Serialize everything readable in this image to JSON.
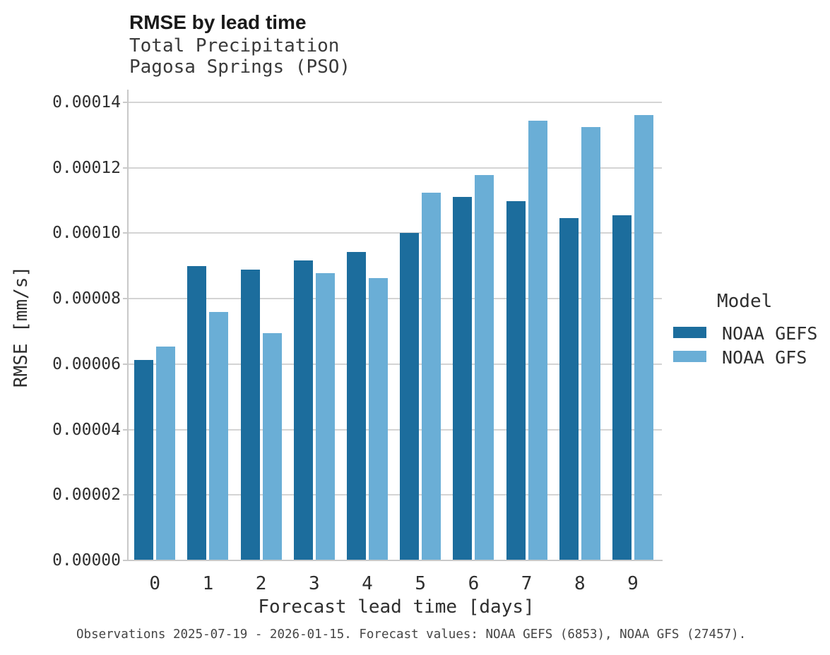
{
  "header": {
    "title": "RMSE by lead time",
    "subtitle_line1": "Total Precipitation",
    "subtitle_line2": "Pagosa Springs (PSO)"
  },
  "footer": {
    "text": "Observations 2025-07-19 - 2026-01-15. Forecast values: NOAA GEFS (6853), NOAA GFS (27457)."
  },
  "legend": {
    "title": "Model",
    "entries": [
      {
        "label": "NOAA GEFS",
        "color": "#1c6d9d"
      },
      {
        "label": "NOAA GFS",
        "color": "#6aaed6"
      }
    ]
  },
  "colors": {
    "noaa_gefs": "#1c6d9d",
    "noaa_gfs": "#6aaed6",
    "gridline": "#d4d4d4",
    "axis_line": "#c9c9c9",
    "title_text": "#1a1a1a",
    "body_text": "#2f2f2f"
  },
  "chart_data": {
    "type": "bar",
    "title": "RMSE by lead time",
    "subtitle": [
      "Total Precipitation",
      "Pagosa Springs (PSO)"
    ],
    "xlabel": "Forecast lead time [days]",
    "ylabel": "RMSE [mm/s]",
    "categories": [
      "0",
      "1",
      "2",
      "3",
      "4",
      "5",
      "6",
      "7",
      "8",
      "9"
    ],
    "series": [
      {
        "name": "NOAA GEFS",
        "color": "#1c6d9d",
        "values": [
          6.12e-05,
          9e-05,
          8.89e-05,
          9.17e-05,
          9.43e-05,
          0.0001001,
          0.000111,
          0.0001099,
          0.0001046,
          0.0001054
        ]
      },
      {
        "name": "NOAA GFS",
        "color": "#6aaed6",
        "values": [
          6.54e-05,
          7.59e-05,
          6.95e-05,
          8.78e-05,
          8.63e-05,
          0.0001123,
          0.0001177,
          0.0001345,
          0.0001324,
          0.0001362
        ]
      }
    ],
    "ylim": [
      0,
      0.00014
    ],
    "ytick_step": 2e-05,
    "ytick_labels": [
      "0.00000",
      "0.00002",
      "0.00004",
      "0.00006",
      "0.00008",
      "0.00010",
      "0.00012",
      "0.00014"
    ],
    "grid": true,
    "legend_position": "right",
    "annotation": "Observations 2025-07-19 - 2026-01-15. Forecast values: NOAA GEFS (6853), NOAA GFS (27457)."
  }
}
